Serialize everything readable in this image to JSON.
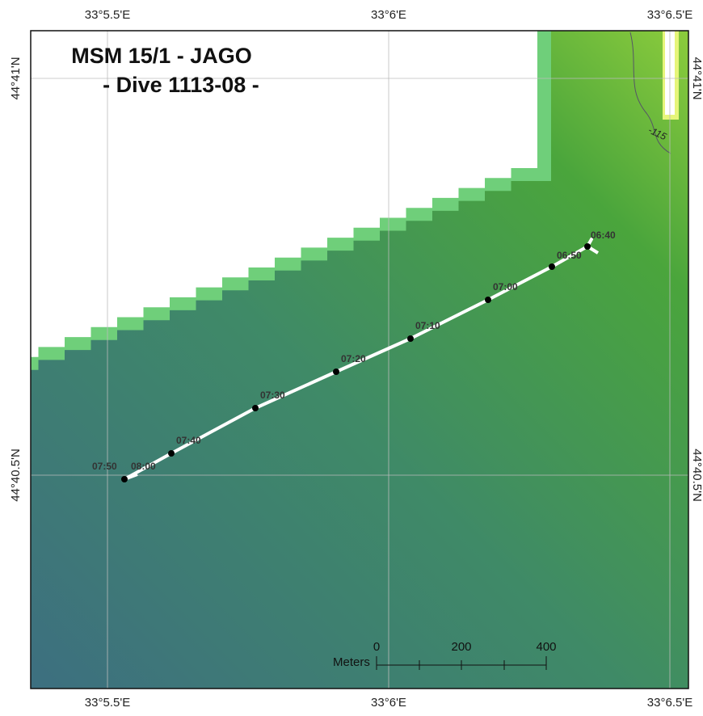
{
  "map": {
    "title": [
      "MSM 15/1 - JAGO",
      "- Dive 1113-08 -"
    ],
    "longitude_labels": {
      "top": [
        "33°5.5'E",
        "33°6'E",
        "33°6.5'E"
      ],
      "bottom": [
        "33°5.5'E",
        "33°6'E",
        "33°6.5'E"
      ]
    },
    "latitude_labels": {
      "left": [
        "44°41'N",
        "44°40.5'N"
      ],
      "right": [
        "44°41'N",
        "44°40.5'N"
      ]
    },
    "track_times": [
      "06:40",
      "06:50",
      "07:00",
      "07:10",
      "07:20",
      "07:30",
      "07:40",
      "07:50",
      "08:00"
    ],
    "contour_label": "-115",
    "scale_bar": {
      "unit": "Meters",
      "ticks": [
        "0",
        "200",
        "400"
      ]
    }
  }
}
